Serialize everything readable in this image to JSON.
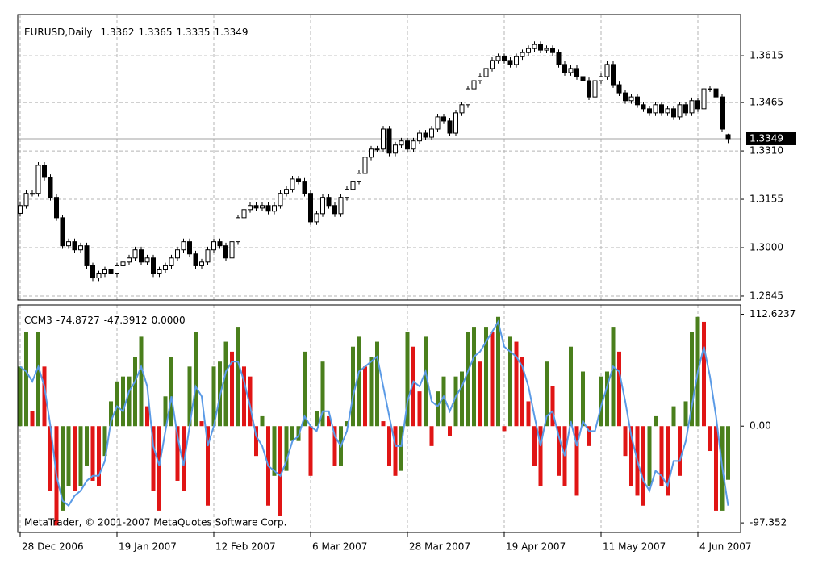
{
  "chart_data": {
    "type": "candlestick",
    "symbol": "EURUSD,Daily",
    "categories": [
      "28 Dec 2006",
      null,
      null,
      null,
      null,
      null,
      null,
      null,
      null,
      null,
      null,
      null,
      null,
      null,
      null,
      null,
      "19 Jan 2007",
      null,
      null,
      null,
      null,
      null,
      null,
      null,
      null,
      null,
      null,
      null,
      null,
      null,
      null,
      null,
      "12 Feb 2007",
      null,
      null,
      null,
      null,
      null,
      null,
      null,
      null,
      null,
      null,
      null,
      null,
      null,
      null,
      null,
      "6 Mar 2007",
      null,
      null,
      null,
      null,
      null,
      null,
      null,
      null,
      null,
      null,
      null,
      null,
      null,
      null,
      null,
      "28 Mar 2007",
      null,
      null,
      null,
      null,
      null,
      null,
      null,
      null,
      null,
      null,
      null,
      null,
      null,
      null,
      null,
      "19 Apr 2007",
      null,
      null,
      null,
      null,
      null,
      null,
      null,
      null,
      null,
      null,
      null,
      null,
      null,
      null,
      null,
      "11 May 2007",
      null,
      null,
      null,
      null,
      null,
      null,
      null,
      null,
      null,
      null,
      null,
      null,
      null,
      null,
      null,
      "4 Jun 2007",
      null,
      null,
      null,
      null,
      null
    ],
    "open": [
      1.311,
      1.3135,
      1.3174,
      1.3174,
      1.3264,
      1.3225,
      1.3161,
      1.3096,
      1.3006,
      1.3019,
      1.2993,
      1.3006,
      1.2942,
      1.2903,
      1.2916,
      1.2929,
      1.2916,
      1.2942,
      1.2954,
      1.2967,
      1.2993,
      1.2954,
      1.2967,
      1.2916,
      1.2929,
      1.2942,
      1.2967,
      1.2993,
      1.3019,
      1.298,
      1.2942,
      1.2954,
      1.2993,
      1.3019,
      1.3006,
      1.2967,
      1.3019,
      1.3096,
      1.3122,
      1.3135,
      1.3127,
      1.3135,
      1.3117,
      1.3135,
      1.3174,
      1.3187,
      1.322,
      1.3213,
      1.3174,
      1.3083,
      1.3109,
      1.3161,
      1.3135,
      1.3109,
      1.3161,
      1.3187,
      1.3213,
      1.3238,
      1.329,
      1.3316,
      1.3316,
      1.338,
      1.3303,
      1.3329,
      1.3342,
      1.3316,
      1.3342,
      1.3367,
      1.3354,
      1.338,
      1.3419,
      1.3406,
      1.3367,
      1.3432,
      1.3458,
      1.3509,
      1.3535,
      1.3548,
      1.3574,
      1.36,
      1.3612,
      1.36,
      1.3587,
      1.3612,
      1.3625,
      1.3638,
      1.3651,
      1.3633,
      1.3638,
      1.3625,
      1.3587,
      1.3561,
      1.3574,
      1.3548,
      1.3535,
      1.3483,
      1.3535,
      1.3548,
      1.3587,
      1.3522,
      1.3496,
      1.3471,
      1.3483,
      1.3458,
      1.3445,
      1.3432,
      1.3458,
      1.3432,
      1.3445,
      1.3419,
      1.3458,
      1.3432,
      1.3471,
      1.3445,
      1.3509,
      1.3509,
      1.3483,
      1.3362
    ],
    "high": [
      1.3145,
      1.3184,
      1.3184,
      1.3274,
      1.3274,
      1.3235,
      1.3171,
      1.3106,
      1.3029,
      1.3029,
      1.3016,
      1.3016,
      1.2952,
      1.2926,
      1.2939,
      1.2939,
      1.2952,
      1.2964,
      1.2977,
      1.3003,
      1.3003,
      1.2977,
      1.2977,
      1.2939,
      1.2952,
      1.2977,
      1.3003,
      1.3029,
      1.3029,
      1.299,
      1.2964,
      1.3003,
      1.3029,
      1.3029,
      1.3016,
      1.3029,
      1.3106,
      1.3132,
      1.3145,
      1.3145,
      1.3145,
      1.3145,
      1.3145,
      1.3184,
      1.3197,
      1.323,
      1.323,
      1.3223,
      1.3184,
      1.3119,
      1.3171,
      1.3171,
      1.3145,
      1.3171,
      1.3197,
      1.3223,
      1.3248,
      1.33,
      1.3326,
      1.3326,
      1.339,
      1.339,
      1.3339,
      1.3352,
      1.3352,
      1.3352,
      1.3377,
      1.3377,
      1.339,
      1.3429,
      1.3429,
      1.3416,
      1.3442,
      1.3468,
      1.3519,
      1.3545,
      1.3558,
      1.3584,
      1.361,
      1.3622,
      1.3622,
      1.361,
      1.3622,
      1.3635,
      1.3648,
      1.3661,
      1.3661,
      1.3648,
      1.3648,
      1.3635,
      1.3597,
      1.3584,
      1.3584,
      1.3558,
      1.3545,
      1.3545,
      1.3558,
      1.3597,
      1.3597,
      1.3532,
      1.3506,
      1.3493,
      1.3493,
      1.3468,
      1.3455,
      1.3468,
      1.3468,
      1.3455,
      1.3455,
      1.3468,
      1.3468,
      1.3481,
      1.3481,
      1.3519,
      1.3519,
      1.3519,
      1.3493,
      1.3365
    ],
    "low": [
      1.31,
      1.3125,
      1.3164,
      1.3164,
      1.3215,
      1.3151,
      1.3086,
      1.2996,
      1.2996,
      1.2983,
      1.2983,
      1.2932,
      1.2893,
      1.2893,
      1.2906,
      1.2906,
      1.2906,
      1.2932,
      1.2944,
      1.2957,
      1.2944,
      1.2944,
      1.2906,
      1.2906,
      1.2919,
      1.2932,
      1.2957,
      1.2983,
      1.297,
      1.2932,
      1.2932,
      1.2944,
      1.2983,
      1.2996,
      1.2957,
      1.2957,
      1.3009,
      1.3086,
      1.3112,
      1.3117,
      1.3117,
      1.3107,
      1.3107,
      1.3125,
      1.3164,
      1.3177,
      1.3203,
      1.3164,
      1.3073,
      1.3073,
      1.3099,
      1.3125,
      1.3099,
      1.3099,
      1.3151,
      1.3177,
      1.3203,
      1.3228,
      1.328,
      1.3306,
      1.3306,
      1.3293,
      1.3293,
      1.3319,
      1.3306,
      1.3306,
      1.3332,
      1.3344,
      1.3344,
      1.337,
      1.3396,
      1.3357,
      1.3357,
      1.3422,
      1.3448,
      1.3499,
      1.3525,
      1.3538,
      1.3564,
      1.359,
      1.359,
      1.3577,
      1.3577,
      1.3602,
      1.3615,
      1.3628,
      1.3623,
      1.3623,
      1.3615,
      1.3577,
      1.3551,
      1.3551,
      1.3538,
      1.3525,
      1.3473,
      1.3473,
      1.3525,
      1.3538,
      1.3512,
      1.3486,
      1.3461,
      1.3461,
      1.3448,
      1.3435,
      1.3422,
      1.3422,
      1.3422,
      1.3422,
      1.3409,
      1.3409,
      1.3422,
      1.3422,
      1.3435,
      1.3435,
      1.3499,
      1.3473,
      1.337,
      1.3335
    ],
    "close": [
      1.3135,
      1.3174,
      1.3174,
      1.3264,
      1.3225,
      1.3161,
      1.3096,
      1.3006,
      1.3019,
      1.2993,
      1.3006,
      1.2942,
      1.2903,
      1.2916,
      1.2929,
      1.2916,
      1.2942,
      1.2954,
      1.2967,
      1.2993,
      1.2954,
      1.2967,
      1.2916,
      1.2929,
      1.2942,
      1.2967,
      1.2993,
      1.3019,
      1.298,
      1.2942,
      1.2954,
      1.2993,
      1.3019,
      1.3006,
      1.2967,
      1.3019,
      1.3096,
      1.3122,
      1.3135,
      1.3127,
      1.3135,
      1.3117,
      1.3135,
      1.3174,
      1.3187,
      1.322,
      1.3213,
      1.3174,
      1.3083,
      1.3109,
      1.3161,
      1.3135,
      1.3109,
      1.3161,
      1.3187,
      1.3213,
      1.3238,
      1.329,
      1.3316,
      1.3316,
      1.338,
      1.3303,
      1.3329,
      1.3342,
      1.3316,
      1.3342,
      1.3367,
      1.3354,
      1.338,
      1.3419,
      1.3406,
      1.3367,
      1.3432,
      1.3458,
      1.3509,
      1.3535,
      1.3548,
      1.3574,
      1.36,
      1.3612,
      1.36,
      1.3587,
      1.3612,
      1.3625,
      1.3638,
      1.3651,
      1.3633,
      1.3638,
      1.3625,
      1.3587,
      1.3561,
      1.3574,
      1.3548,
      1.3535,
      1.3483,
      1.3535,
      1.3548,
      1.3587,
      1.3522,
      1.3496,
      1.3471,
      1.3483,
      1.3458,
      1.3445,
      1.3432,
      1.3458,
      1.3432,
      1.3445,
      1.3419,
      1.3458,
      1.3432,
      1.3471,
      1.3445,
      1.3509,
      1.3509,
      1.3483,
      1.338,
      1.3349
    ],
    "up_color": "#ffffff",
    "down_color": "#000000",
    "ylim": [
      1.2832,
      1.3747
    ],
    "yticks": [
      1.3615,
      1.3465,
      {
        "value": 1.331,
        "label": "1.3310"
      },
      1.3155,
      {
        "value": 1.3,
        "label": "1.3000"
      },
      1.2845
    ],
    "grid": true,
    "indicator": {
      "type": "bar",
      "name": "CCM3",
      "header_values": [
        -74.8727,
        -47.3912,
        {
          "value": 0,
          "label": "0.0000"
        }
      ],
      "histogram": {
        "up_color": "#4a7f1c",
        "down_color": "#e01515",
        "values": [
          60,
          95,
          15,
          95,
          60,
          -65,
          -100,
          -85,
          -60,
          -65,
          -60,
          -40,
          -55,
          -60,
          -30,
          25,
          45,
          50,
          50,
          70,
          90,
          20,
          -65,
          -85,
          30,
          70,
          -55,
          -65,
          60,
          95,
          5,
          -80,
          60,
          65,
          85,
          75,
          100,
          60,
          50,
          -30,
          10,
          -80,
          -50,
          -90,
          -45,
          -15,
          -15,
          75,
          -50,
          15,
          65,
          10,
          -40,
          -40,
          5,
          80,
          90,
          60,
          70,
          85,
          5,
          -40,
          -50,
          -45,
          95,
          80,
          35,
          90,
          -20,
          35,
          50,
          -10,
          50,
          55,
          95,
          100,
          65,
          100,
          95,
          110,
          -5,
          90,
          85,
          70,
          25,
          -40,
          -60,
          65,
          40,
          -50,
          -60,
          80,
          -70,
          55,
          -20,
          0,
          50,
          55,
          100,
          75,
          -30,
          -60,
          -70,
          -80,
          -60,
          10,
          -60,
          -70,
          20,
          -50,
          25,
          95,
          110,
          105,
          -25,
          -85,
          -85,
          -54
        ]
      },
      "line": {
        "color": "#5a9ae6",
        "values": [
          60,
          55,
          45,
          60,
          40,
          0,
          -50,
          -75,
          -80,
          -70,
          -65,
          -55,
          -50,
          -50,
          -35,
          5,
          20,
          15,
          35,
          45,
          60,
          40,
          -20,
          -40,
          -5,
          30,
          -10,
          -40,
          0,
          40,
          30,
          -20,
          0,
          30,
          55,
          65,
          65,
          45,
          20,
          -10,
          -20,
          -40,
          -45,
          -50,
          -35,
          -15,
          -10,
          10,
          0,
          -5,
          15,
          15,
          -10,
          -20,
          -5,
          30,
          55,
          60,
          65,
          70,
          40,
          10,
          -20,
          -20,
          25,
          45,
          40,
          55,
          25,
          20,
          30,
          15,
          30,
          40,
          55,
          70,
          75,
          85,
          95,
          105,
          80,
          75,
          70,
          60,
          40,
          10,
          -20,
          10,
          15,
          -10,
          -30,
          5,
          -20,
          5,
          -5,
          -5,
          20,
          40,
          60,
          55,
          25,
          -10,
          -35,
          -55,
          -65,
          -45,
          -50,
          -60,
          -35,
          -35,
          -15,
          20,
          55,
          80,
          50,
          10,
          -40,
          -80
        ]
      },
      "ylim": [
        -107,
        122
      ],
      "yticks": [
        112.6237,
        {
          "value": 0,
          "label": "0.00"
        },
        -97.352
      ]
    },
    "copyright": "MetaTrader, © 2001-2007 MetaQuotes Software Corp."
  }
}
